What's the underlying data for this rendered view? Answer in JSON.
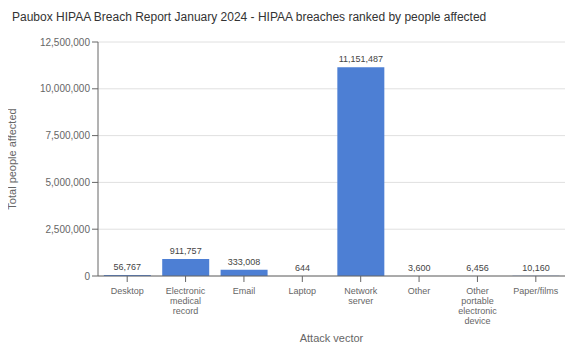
{
  "chart_data": {
    "type": "bar",
    "title": "Paubox HIPAA Breach Report January 2024 - HIPAA breaches ranked by people affected",
    "x_label": "Attack vector",
    "y_label": "Total people affected",
    "categories": [
      "Desktop",
      "Electronic medical record",
      "Email",
      "Laptop",
      "Network server",
      "Other",
      "Other portable electronic device",
      "Paper/films"
    ],
    "values": [
      56767,
      911757,
      333008,
      644,
      11151487,
      3600,
      6456,
      10160
    ],
    "value_labels": [
      "56,767",
      "911,757",
      "333,008",
      "644",
      "11,151,487",
      "3,600",
      "6,456",
      "10,160"
    ],
    "data_labels": true,
    "color": "#4d7fd4",
    "ylim": [
      0,
      12500000
    ],
    "yticks": [
      0,
      {
        "value": 2500000,
        "label": "2,500,000"
      },
      {
        "value": 5000000,
        "label": "5,000,000"
      },
      {
        "value": 7500000,
        "label": "7,500,000"
      },
      {
        "value": 10000000,
        "label": "10,000,000"
      },
      {
        "value": 12500000,
        "label": "12,500,000"
      }
    ],
    "grid": true
  }
}
